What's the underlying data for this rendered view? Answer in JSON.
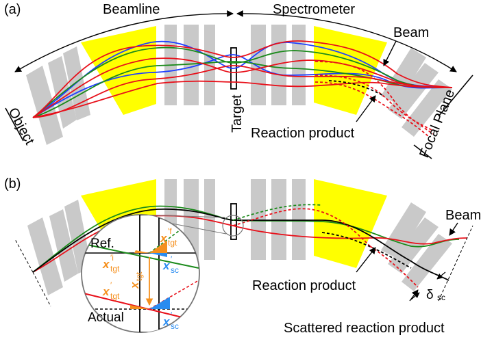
{
  "panel_a": {
    "label": "(a)",
    "beamline": "Beamline",
    "spectrometer": "Spectrometer",
    "beam": "Beam",
    "object": "Object",
    "target": "Target",
    "reaction_product": "Reaction product",
    "focal_plane": "Focal Plane"
  },
  "panel_b": {
    "label": "(b)",
    "beam": "Beam",
    "reaction_product": "Reaction product",
    "scattered_reaction_product": "Scattered reaction product",
    "delta_symbol": "δ",
    "delta_sub": "sc",
    "inset": {
      "ref": "Ref.",
      "actual": "Actual",
      "x_tgt_prime_f": "x",
      "x_tgt_prime_f_sub": "tgt",
      "x_tgt_prime_f_sup": "′f",
      "x_tgt_prime_i": "x",
      "x_tgt_prime_i_sub": "tgt",
      "x_tgt_prime_i_sup": "′i",
      "x_tgt": "x",
      "x_tgt_sub": "tgt",
      "x_tgt_prime": "x",
      "x_tgt_prime_sub": "tgt",
      "x_tgt_prime_sup": "′",
      "x_sc_prime_1": "x",
      "x_sc_prime_1_sub": "sc",
      "x_sc_prime_1_sup": "′",
      "x_sc_prime_2": "x",
      "x_sc_prime_2_sub": "sc",
      "x_sc_prime_2_sup": "′"
    }
  },
  "colors": {
    "magnet": "#c9c9c9",
    "dipole": "#ffff00",
    "blue": "#1f3fff",
    "green": "#1a8a1a",
    "red": "#e8101a",
    "orange": "#f5901e",
    "light_blue": "#2a8cf0"
  }
}
